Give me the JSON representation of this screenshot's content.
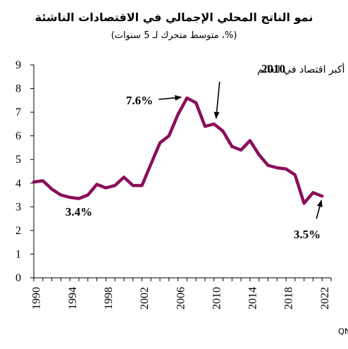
{
  "chart_data": {
    "type": "line",
    "title": "نمو الناتج المحلي الإجمالي في الاقتصادات الناشئة",
    "subtitle": "(%، متوسط متحرك لـ 5 سنوات)",
    "xlabel": "",
    "ylabel": "",
    "xlim": [
      1990,
      2023
    ],
    "ylim": [
      0,
      9
    ],
    "x_ticks": [
      "1990",
      "1994",
      "1998",
      "2002",
      "2006",
      "2010",
      "2014",
      "2018",
      "2022"
    ],
    "y_ticks": [
      "0",
      "1",
      "2",
      "3",
      "4",
      "5",
      "6",
      "7",
      "8",
      "9"
    ],
    "grid": false,
    "legend": "none",
    "series": [
      {
        "color": "#8b0f5a",
        "x": [
          1990,
          1991,
          1992,
          1993,
          1994,
          1995,
          1996,
          1997,
          1998,
          1999,
          2000,
          2001,
          2002,
          2003,
          2004,
          2005,
          2006,
          2007,
          2008,
          2009,
          2010,
          2011,
          2012,
          2013,
          2014,
          2015,
          2016,
          2017,
          2018,
          2019,
          2020,
          2021,
          2022
        ],
        "y": [
          4.05,
          4.1,
          3.75,
          3.5,
          3.4,
          3.35,
          3.5,
          3.95,
          3.8,
          3.9,
          4.25,
          3.9,
          3.9,
          4.8,
          5.7,
          6.0,
          6.9,
          7.6,
          7.4,
          6.4,
          6.5,
          6.2,
          5.55,
          5.4,
          5.8,
          5.2,
          4.75,
          4.65,
          4.6,
          4.35,
          3.15,
          3.6,
          3.45
        ]
      }
    ],
    "annotations": [
      {
        "text": "7.6%",
        "x": 2007,
        "y": 7.6
      },
      {
        "text": "3.4%",
        "x": 1994,
        "y": 3.4
      },
      {
        "text": "3.5%",
        "x": 2022,
        "y": 3.45
      },
      {
        "text": "الصين تصبح ثاني أكبر اقتصاد في العالم",
        "year_label": "2010",
        "x": 2010,
        "y": 6.5
      }
    ],
    "source": "المصادر: تقرير آفاق الاقتصاد العالمي لصندوق النقد الدولي، قسم الاقتصاد في QNB"
  },
  "colors": {
    "line": "#8b0f5a",
    "axis": "#000000",
    "text": "#000000"
  }
}
